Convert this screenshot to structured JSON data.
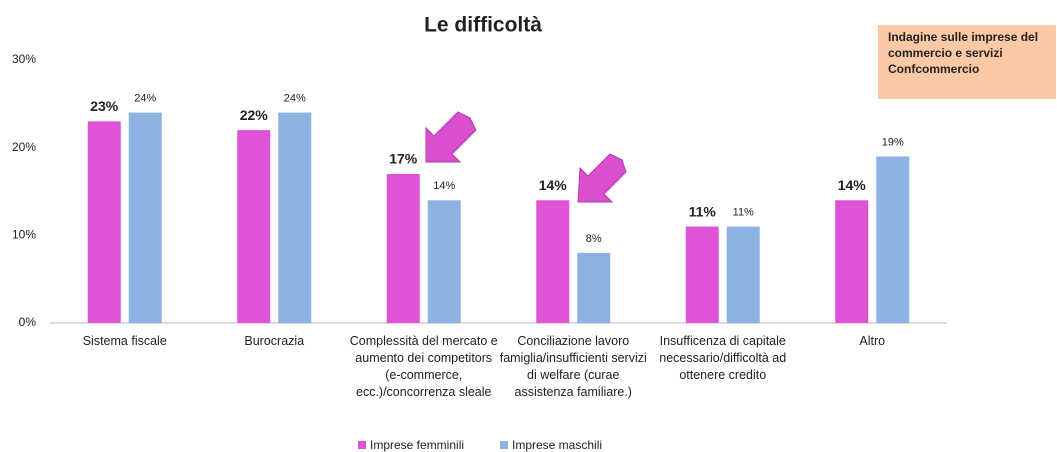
{
  "chart_data": {
    "type": "bar",
    "title": "Le difficoltà",
    "annotations": [
      "Indagine sulle imprese del commercio e servizi Confcommercio"
    ],
    "categories": [
      "Sistema fiscale",
      "Burocrazia",
      "Complessità del mercato e aumento dei competitors (e-commerce, ecc.)/concorrenza sleale",
      "Conciliazione lavoro famiglia/insufficienti servizi di welfare (curae assistenza familiare.)",
      "Insufficenza di capitale necessario/difficoltà ad ottenere credito",
      "Altro"
    ],
    "series": [
      {
        "name": "Imprese femminili",
        "color": "#e052d6",
        "values": [
          23,
          22,
          17,
          14,
          11,
          14
        ],
        "value_labels": [
          "23%",
          "22%",
          "17%",
          "14%",
          "11%",
          "14%"
        ]
      },
      {
        "name": "Imprese maschili",
        "color": "#8db3e2",
        "values": [
          24,
          24,
          14,
          8,
          11,
          19
        ],
        "value_labels": [
          "24%",
          "24%",
          "14%",
          "8%",
          "11%",
          "19%"
        ]
      }
    ],
    "ylim": [
      0,
      30
    ],
    "yticks": [
      {
        "value": 0,
        "label": "0%"
      },
      {
        "value": 10,
        "label": "10%"
      },
      {
        "value": 20,
        "label": "20%"
      },
      {
        "value": 30,
        "label": "30%"
      }
    ],
    "grid": false,
    "legend": "bottom"
  }
}
